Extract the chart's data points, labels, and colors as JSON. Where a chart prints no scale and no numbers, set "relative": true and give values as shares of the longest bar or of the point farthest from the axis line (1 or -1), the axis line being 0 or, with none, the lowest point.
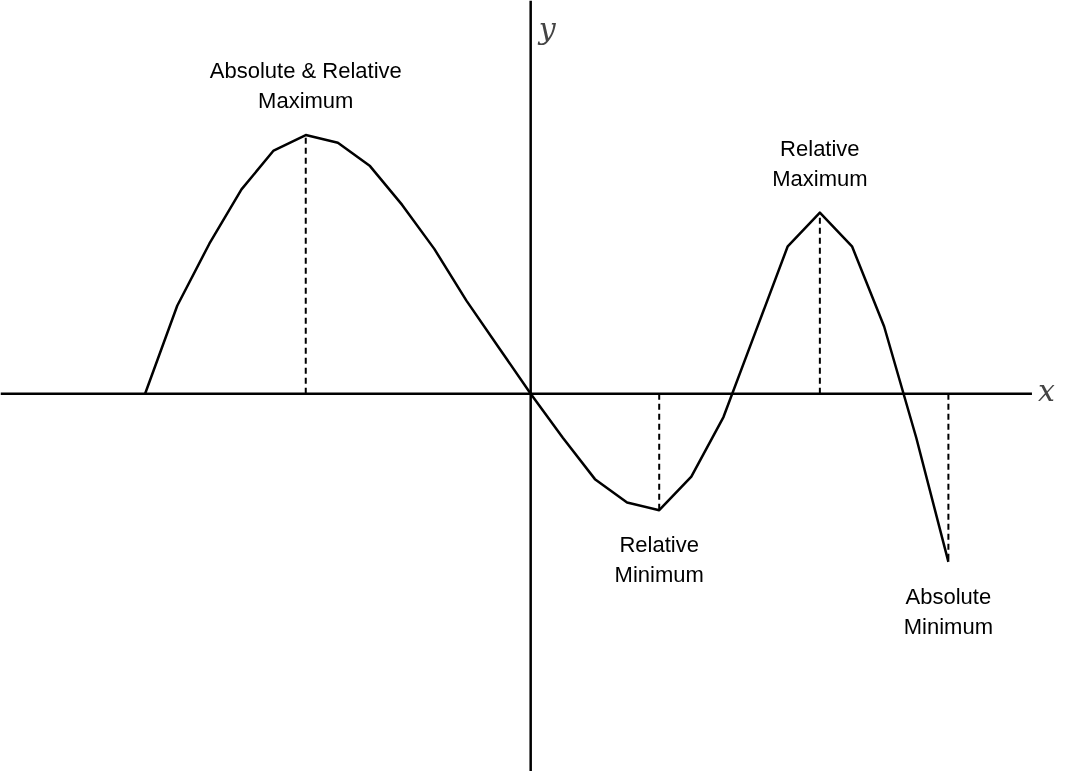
{
  "chart_data": {
    "type": "line",
    "relative": true,
    "xlabel": "x",
    "ylabel": "y",
    "color": "#000000",
    "marker": "none",
    "line_style": "solid",
    "categories": [
      null,
      null,
      null,
      null,
      null,
      null,
      null,
      null,
      null,
      null,
      null,
      null,
      null,
      null,
      null,
      null,
      null,
      null,
      null,
      null,
      null,
      null,
      null,
      null,
      null,
      null
    ],
    "values": [
      0,
      0.34,
      0.58,
      0.79,
      0.94,
      1.0,
      0.97,
      0.88,
      0.73,
      0.56,
      0.36,
      0.18,
      0,
      -0.17,
      -0.33,
      -0.42,
      -0.45,
      -0.32,
      -0.09,
      0.24,
      0.57,
      0.7,
      0.57,
      0.26,
      -0.17,
      -0.65
    ],
    "annotations": [
      {
        "text": "Absolute & Relative\nMaximum",
        "y": 1.0
      },
      {
        "text": "Relative\nMaximum",
        "y": 0.7
      },
      {
        "text": "Relative\nMinimum",
        "y": -0.45
      },
      {
        "text": "Absolute\nMinimum",
        "y": -0.65
      }
    ]
  }
}
